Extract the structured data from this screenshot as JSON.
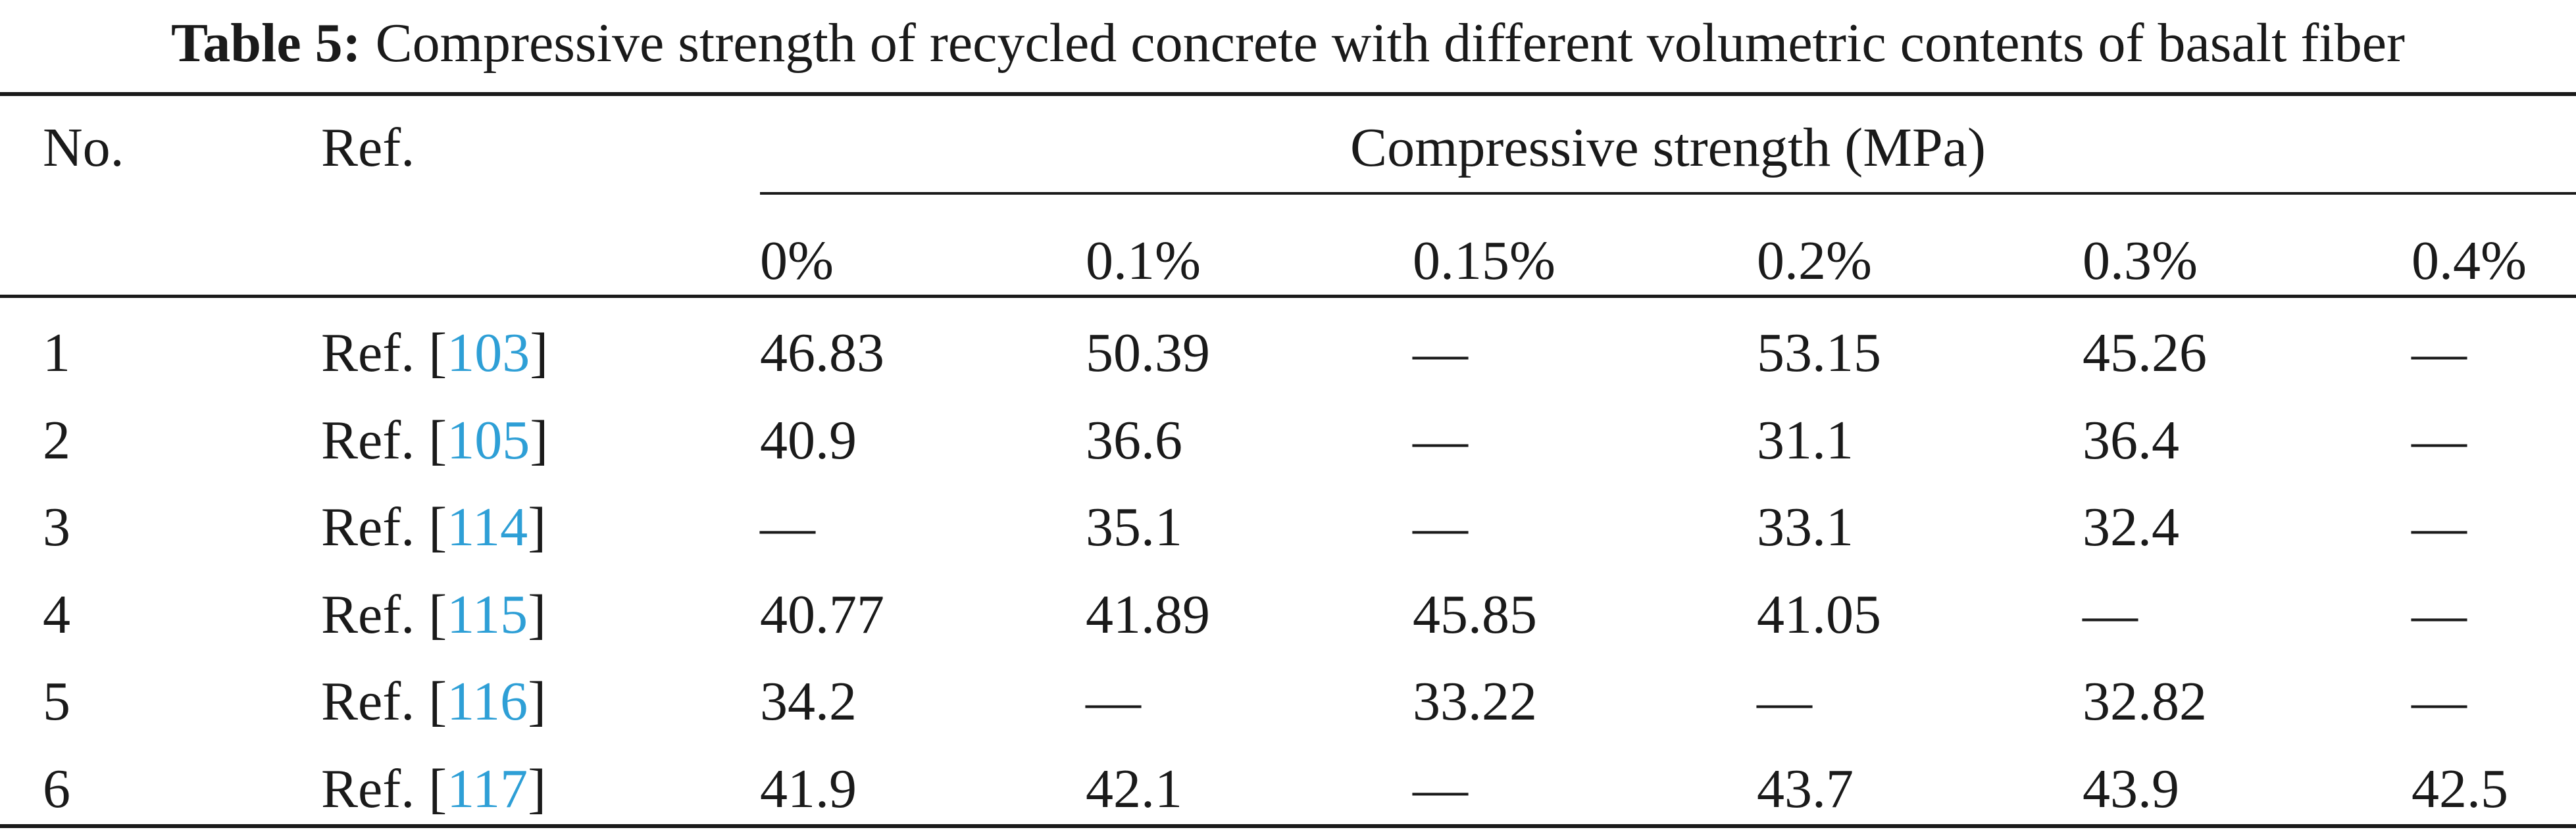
{
  "caption": {
    "label": "Table 5:",
    "text": "Compressive strength of recycled concrete with different volumetric contents of basalt fiber"
  },
  "header": {
    "no": "No.",
    "ref": "Ref.",
    "group": "Compressive strength (MPa)",
    "columns": [
      "0%",
      "0.1%",
      "0.15%",
      "0.2%",
      "0.3%",
      "0.4%"
    ]
  },
  "colors": {
    "link": "#2e9fd6",
    "text": "#1a1a1a"
  },
  "rows": [
    {
      "no": "1",
      "ref_prefix": "Ref. [",
      "ref_num": "103",
      "ref_suffix": "]",
      "values": [
        "46.83",
        "50.39",
        "—",
        "53.15",
        "45.26",
        "—"
      ]
    },
    {
      "no": "2",
      "ref_prefix": "Ref. [",
      "ref_num": "105",
      "ref_suffix": "]",
      "values": [
        "40.9",
        "36.6",
        "—",
        "31.1",
        "36.4",
        "—"
      ]
    },
    {
      "no": "3",
      "ref_prefix": "Ref. [",
      "ref_num": "114",
      "ref_suffix": "]",
      "values": [
        "—",
        "35.1",
        "—",
        "33.1",
        "32.4",
        "—"
      ]
    },
    {
      "no": "4",
      "ref_prefix": "Ref. [",
      "ref_num": "115",
      "ref_suffix": "]",
      "values": [
        "40.77",
        "41.89",
        "45.85",
        "41.05",
        "—",
        "—"
      ]
    },
    {
      "no": "5",
      "ref_prefix": "Ref. [",
      "ref_num": "116",
      "ref_suffix": "]",
      "values": [
        "34.2",
        "—",
        "33.22",
        "—",
        "32.82",
        "—"
      ]
    },
    {
      "no": "6",
      "ref_prefix": "Ref. [",
      "ref_num": "117",
      "ref_suffix": "]",
      "values": [
        "41.9",
        "42.1",
        "—",
        "43.7",
        "43.9",
        "42.5"
      ]
    }
  ]
}
